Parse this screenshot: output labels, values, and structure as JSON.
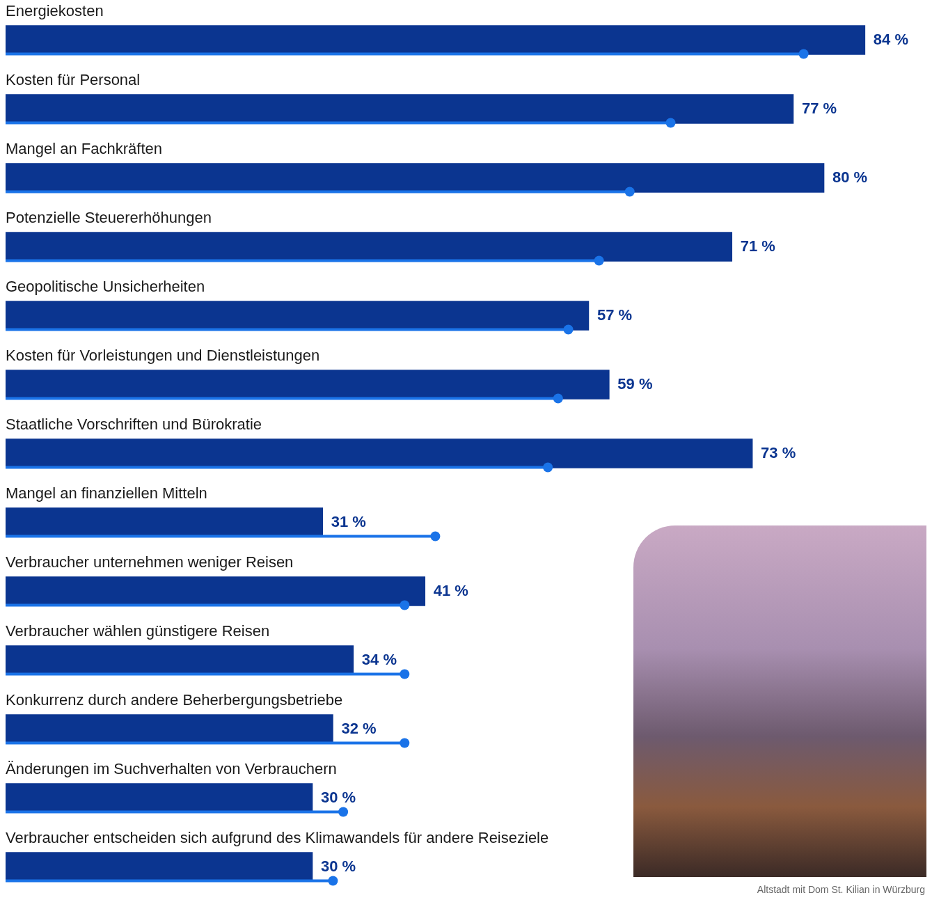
{
  "chart_data": {
    "type": "bar",
    "orientation": "horizontal",
    "categories": [
      "Energiekosten",
      "Kosten für Personal",
      "Mangel an Fachkräften",
      "Potenzielle Steuererhöhungen",
      "Geopolitische Unsicherheiten",
      "Kosten für Vorleistungen und Dienstleistungen",
      "Staatliche Vorschriften und Bürokratie",
      "Mangel an finanziellen Mitteln",
      "Verbraucher unternehmen weniger Reisen",
      "Verbraucher wählen günstigere Reisen",
      "Konkurrenz durch andere Beherbergungsbetriebe",
      "Änderungen im Suchverhalten von Verbrauchern",
      "Verbraucher entscheiden sich aufgrund des Klimawandels für andere Reiseziele"
    ],
    "series": [
      {
        "type": "bar",
        "color": "#0b3590",
        "values": [
          84,
          77,
          80,
          71,
          57,
          59,
          73,
          31,
          41,
          34,
          32,
          30,
          30
        ],
        "value_labels": [
          "84 %",
          "77 %",
          "80 %",
          "71 %",
          "57 %",
          "59 %",
          "73 %",
          "31 %",
          "41 %",
          "34 %",
          "32 %",
          "30 %",
          "30 %"
        ]
      },
      {
        "type": "lollipop",
        "marker": "circle",
        "color": "#1a73e8",
        "values": [
          78,
          65,
          61,
          58,
          55,
          54,
          53,
          42,
          39,
          39,
          39,
          33,
          32
        ]
      }
    ],
    "xlim": [
      0,
      90
    ],
    "grid": false,
    "tick_labels": false,
    "data_labels": true,
    "annotations": [
      "Altstadt mit Dom St. Kilian in Würzburg"
    ]
  }
}
